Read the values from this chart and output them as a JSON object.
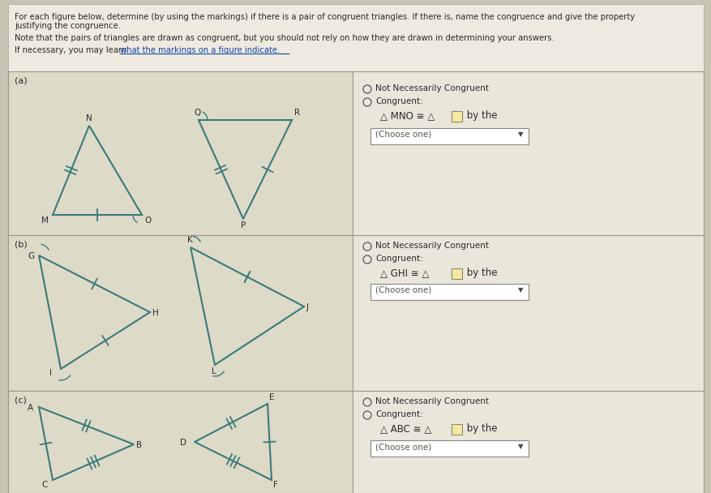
{
  "bg_outer": "#c8c4b4",
  "bg_content": "#eeeae0",
  "bg_left_panel": "#dddac8",
  "bg_right_panel": "#eae6da",
  "teal": "#3a7a7a",
  "gray": "#2a2a2a",
  "link_color": "#1144aa",
  "header1": "For each figure below, determine (by using the markings) if there is a pair of congruent triangles. If there is, name the congruence and give the property",
  "header2": "justifying the congruence.",
  "note": "Note that the pairs of triangles are drawn as congruent, but you should not rely on how they are drawn in determining your answers.",
  "link_prefix": "If necessary, you may learn ",
  "link_text": "what the markings on a figure indicate.",
  "panel_labels": [
    "(a)",
    "(b)",
    "(c)"
  ],
  "radio1": "Not Necessarily Congruent",
  "radio2": "Congruent:",
  "congruence": [
    "△ MNO ≅ △",
    "△ GHI ≅ △",
    "△ ABC ≅ △"
  ],
  "by_the": " by the",
  "dropdown": "(Choose one)",
  "col_split": 435,
  "row_tops": [
    88,
    290,
    482
  ],
  "row_bots": [
    290,
    482,
    608
  ]
}
